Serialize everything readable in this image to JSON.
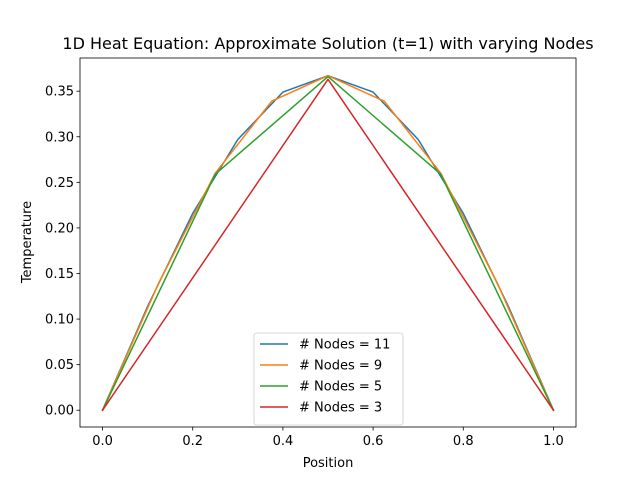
{
  "chart_data": {
    "type": "line",
    "title": "1D Heat Equation: Approximate Solution (t=1) with varying Nodes",
    "xlabel": "Position",
    "ylabel": "Temperature",
    "xlim": [
      -0.05,
      1.05
    ],
    "ylim": [
      -0.0184,
      0.3864
    ],
    "xticks": [
      0.0,
      0.2,
      0.4,
      0.6,
      0.8,
      1.0
    ],
    "xtick_labels": [
      "0.0",
      "0.2",
      "0.4",
      "0.6",
      "0.8",
      "1.0"
    ],
    "yticks": [
      0.0,
      0.05,
      0.1,
      0.15,
      0.2,
      0.25,
      0.3,
      0.35
    ],
    "ytick_labels": [
      "0.00",
      "0.05",
      "0.10",
      "0.15",
      "0.20",
      "0.25",
      "0.30",
      "0.35"
    ],
    "grid": false,
    "legend_position": "bottom-center",
    "series": [
      {
        "name": "# Nodes = 11",
        "color": "#1f77b4",
        "x": [
          0.0,
          0.1,
          0.2,
          0.3,
          0.4,
          0.5,
          0.6,
          0.7,
          0.8,
          0.9,
          1.0
        ],
        "y": [
          0.0,
          0.114,
          0.216,
          0.297,
          0.349,
          0.367,
          0.349,
          0.297,
          0.216,
          0.114,
          0.0
        ]
      },
      {
        "name": "# Nodes = 9",
        "color": "#ff7f0e",
        "x": [
          0.0,
          0.125,
          0.25,
          0.375,
          0.5,
          0.625,
          0.75,
          0.875,
          1.0
        ],
        "y": [
          0.0,
          0.14,
          0.26,
          0.339,
          0.367,
          0.339,
          0.26,
          0.14,
          0.0
        ]
      },
      {
        "name": "# Nodes = 5",
        "color": "#2ca02c",
        "x": [
          0.0,
          0.25,
          0.5,
          0.75,
          1.0
        ],
        "y": [
          0.0,
          0.259,
          0.366,
          0.259,
          0.0
        ]
      },
      {
        "name": "# Nodes = 3",
        "color": "#d62728",
        "x": [
          0.0,
          0.5,
          1.0
        ],
        "y": [
          0.0,
          0.363,
          0.0
        ]
      }
    ]
  }
}
